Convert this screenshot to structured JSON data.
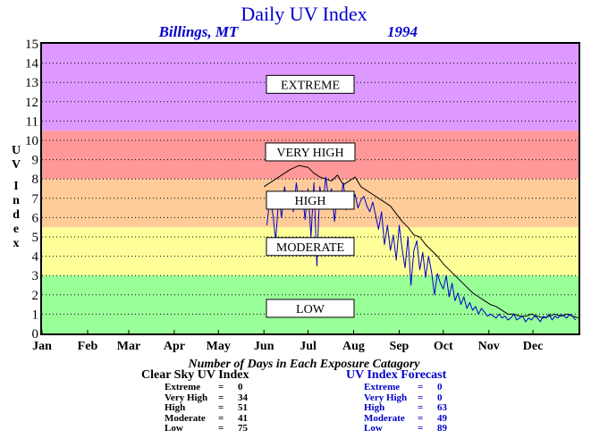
{
  "chart_data": {
    "type": "line",
    "title": "Daily UV Index",
    "subtitle_location": "Billings, MT",
    "subtitle_year": "1994",
    "ylabel": "UV Index",
    "ylim": [
      0,
      15
    ],
    "yticks": [
      0,
      1,
      2,
      3,
      4,
      5,
      6,
      7,
      8,
      9,
      10,
      11,
      12,
      13,
      14,
      15
    ],
    "xlim": [
      1,
      366
    ],
    "months": [
      "Jan",
      "Feb",
      "Mar",
      "Apr",
      "May",
      "Jun",
      "Jul",
      "Aug",
      "Sep",
      "Oct",
      "Nov",
      "Dec"
    ],
    "month_start_days": [
      1,
      32,
      60,
      91,
      121,
      152,
      182,
      213,
      244,
      274,
      305,
      335
    ],
    "grid": "horizontal dotted",
    "bands": [
      {
        "label": "LOW",
        "from": 0,
        "to": 3,
        "color": "#99ff99"
      },
      {
        "label": "MODERATE",
        "from": 3,
        "to": 5.5,
        "color": "#ffff99"
      },
      {
        "label": "HIGH",
        "from": 5.5,
        "to": 8,
        "color": "#ffcc99"
      },
      {
        "label": "VERY HIGH",
        "from": 8,
        "to": 10.5,
        "color": "#ff9999"
      },
      {
        "label": "EXTREME",
        "from": 10.5,
        "to": 15,
        "color": "#dd99ff"
      }
    ],
    "band_label_values": {
      "EXTREME": 12.9,
      "VERY HIGH": 9.4,
      "HIGH": 6.9,
      "MODERATE": 4.5,
      "LOW": 1.3
    },
    "series": [
      {
        "name": "Clear Sky UV Index",
        "color": "#000000",
        "x": [
          152,
          158,
          164,
          170,
          176,
          182,
          186,
          190,
          194,
          198,
          202,
          206,
          210,
          214,
          218,
          222,
          226,
          230,
          234,
          238,
          242,
          246,
          250,
          254,
          258,
          262,
          266,
          270,
          274,
          278,
          282,
          286,
          290,
          294,
          298,
          302,
          306,
          310,
          314,
          318,
          322,
          326,
          330,
          334,
          338,
          342,
          346,
          350,
          354,
          358,
          362,
          366
        ],
        "values": [
          7.6,
          7.9,
          8.2,
          8.5,
          8.7,
          8.6,
          8.3,
          8.1,
          8.0,
          7.9,
          8.2,
          7.7,
          7.9,
          8.1,
          7.6,
          7.4,
          7.2,
          7.0,
          6.8,
          6.6,
          6.2,
          5.8,
          5.5,
          5.1,
          5.0,
          4.6,
          4.3,
          4.0,
          3.6,
          3.3,
          3.0,
          2.7,
          2.4,
          2.1,
          1.9,
          1.7,
          1.5,
          1.4,
          1.2,
          1.0,
          1.0,
          0.9,
          0.9,
          1.0,
          0.9,
          0.8,
          0.9,
          1.0,
          0.9,
          1.0,
          0.9,
          0.8
        ]
      },
      {
        "name": "UV Index Forecast",
        "color": "#0000cc",
        "x": [
          154,
          156,
          158,
          160,
          162,
          164,
          166,
          168,
          170,
          172,
          174,
          176,
          178,
          180,
          182,
          184,
          186,
          188,
          190,
          192,
          194,
          196,
          198,
          200,
          202,
          204,
          206,
          208,
          210,
          212,
          214,
          216,
          218,
          220,
          222,
          224,
          226,
          228,
          230,
          232,
          234,
          236,
          238,
          240,
          242,
          244,
          246,
          248,
          250,
          252,
          254,
          256,
          258,
          260,
          262,
          264,
          266,
          268,
          270,
          272,
          274,
          276,
          278,
          280,
          282,
          284,
          286,
          288,
          290,
          292,
          294,
          296,
          298,
          300,
          302,
          304,
          306,
          308,
          310,
          312,
          314,
          316,
          318,
          320,
          322,
          324,
          326,
          328,
          330,
          332,
          334,
          336,
          338,
          340,
          342,
          344,
          346,
          348,
          350,
          352,
          354,
          356,
          358,
          360,
          362,
          364
        ],
        "values": [
          5.6,
          7.0,
          6.2,
          4.8,
          7.1,
          6.0,
          7.6,
          6.7,
          7.2,
          6.3,
          7.8,
          6.6,
          7.4,
          5.9,
          7.5,
          5.0,
          7.8,
          3.5,
          7.6,
          6.6,
          8.1,
          7.0,
          7.5,
          5.8,
          7.3,
          6.9,
          7.8,
          6.4,
          7.0,
          6.7,
          7.2,
          6.5,
          6.9,
          7.1,
          6.6,
          6.3,
          6.8,
          6.1,
          5.4,
          6.3,
          4.6,
          5.6,
          4.3,
          5.1,
          3.8,
          5.6,
          4.4,
          3.4,
          5.0,
          2.5,
          4.3,
          4.8,
          3.3,
          4.2,
          2.9,
          4.0,
          3.2,
          2.0,
          3.1,
          2.6,
          2.3,
          3.0,
          1.9,
          2.6,
          1.7,
          2.1,
          1.5,
          1.9,
          1.3,
          1.6,
          1.2,
          1.4,
          1.0,
          1.3,
          1.1,
          0.9,
          1.0,
          0.9,
          0.8,
          1.0,
          0.8,
          0.9,
          0.7,
          0.8,
          1.0,
          0.7,
          0.8,
          0.9,
          0.6,
          0.8,
          0.7,
          0.9,
          0.8,
          0.6,
          0.9,
          0.8,
          1.0,
          0.7,
          0.9,
          0.8,
          1.0,
          0.9,
          0.8,
          1.0,
          0.9,
          0.7
        ]
      }
    ]
  },
  "summary": {
    "caption": "Number of Days in Each Exposure Catagory",
    "clear_sky": {
      "title": "Clear Sky UV Index",
      "color": "#000000",
      "rows": [
        {
          "label": "Extreme",
          "eq": "=",
          "value": "0"
        },
        {
          "label": "Very High",
          "eq": "=",
          "value": "34"
        },
        {
          "label": "High",
          "eq": "=",
          "value": "51"
        },
        {
          "label": "Moderate",
          "eq": "=",
          "value": "41"
        },
        {
          "label": "Low",
          "eq": "=",
          "value": "75"
        }
      ]
    },
    "forecast": {
      "title": "UV Index Forecast",
      "color": "#0000cc",
      "rows": [
        {
          "label": "Extreme",
          "eq": "=",
          "value": "0"
        },
        {
          "label": "Very High",
          "eq": "=",
          "value": "0"
        },
        {
          "label": "High",
          "eq": "=",
          "value": "63"
        },
        {
          "label": "Moderate",
          "eq": "=",
          "value": "49"
        },
        {
          "label": "Low",
          "eq": "=",
          "value": "89"
        }
      ]
    }
  }
}
